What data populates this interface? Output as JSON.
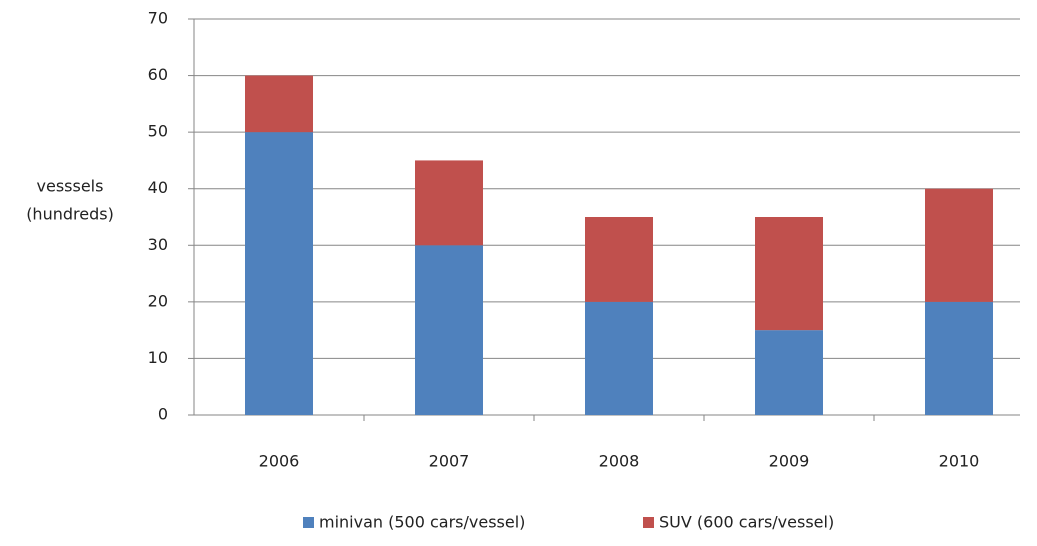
{
  "chart_data": {
    "type": "stacked_bar",
    "y_label": [
      "vesssels",
      "(hundreds)"
    ],
    "categories": [
      "2006",
      "2007",
      "2008",
      "2009",
      "2010"
    ],
    "series": [
      {
        "name": "minivan (500 cars/vessel)",
        "color": "#4f81bd",
        "values": [
          50,
          30,
          20,
          15,
          20
        ]
      },
      {
        "name": "SUV (600 cars/vessel)",
        "color": "#c0504d",
        "values": [
          10,
          15,
          15,
          20,
          20
        ]
      }
    ],
    "ylim": [
      0,
      70
    ],
    "yticks": [
      0,
      10,
      20,
      30,
      40,
      50,
      60,
      70
    ],
    "grid": true,
    "legend": "bottom"
  }
}
